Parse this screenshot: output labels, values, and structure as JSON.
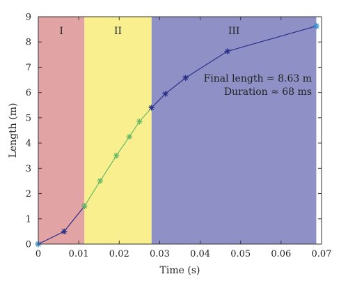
{
  "chart_data": {
    "type": "line",
    "xlabel": "Time (s)",
    "ylabel": "Length (m)",
    "xlim": [
      0,
      0.07
    ],
    "ylim": [
      0,
      9
    ],
    "x_ticks": [
      "0",
      "0.01",
      "0.02",
      "0.03",
      "0.04",
      "0.05",
      "0.06",
      "0.07"
    ],
    "y_ticks": [
      "0",
      "1",
      "2",
      "3",
      "4",
      "5",
      "6",
      "7",
      "8",
      "9"
    ],
    "grid": false,
    "regions": [
      {
        "label": "I",
        "x_range": [
          0,
          0.0114
        ],
        "color": "#e1a3a3"
      },
      {
        "label": "II",
        "x_range": [
          0.0114,
          0.028
        ],
        "color": "#f9ef8f"
      },
      {
        "label": "III",
        "x_range": [
          0.028,
          0.0687
        ],
        "color": "#8f91c6"
      }
    ],
    "series": [
      {
        "color": "#2b2f8a",
        "x": [
          0,
          0.0064,
          0.0114
        ],
        "y": [
          0,
          0.5,
          1.5
        ]
      },
      {
        "color": "#66b864",
        "x": [
          0.0114,
          0.0153,
          0.0193,
          0.0225,
          0.025,
          0.028
        ],
        "y": [
          1.5,
          2.5,
          3.5,
          4.25,
          4.85,
          5.4
        ]
      },
      {
        "color": "#2b2f8a",
        "x": [
          0.028,
          0.0314,
          0.0364,
          0.0467,
          0.0687
        ],
        "y": [
          5.4,
          5.95,
          6.58,
          7.63,
          8.63
        ]
      }
    ],
    "end_markers": [
      {
        "x": 0,
        "y": 0,
        "color": "#3a9ad9"
      },
      {
        "x": 0.0687,
        "y": 8.63,
        "color": "#3a9ad9"
      }
    ],
    "annotation": [
      "Final length = 8.63 m",
      "Duration ≈ 68 ms"
    ]
  }
}
